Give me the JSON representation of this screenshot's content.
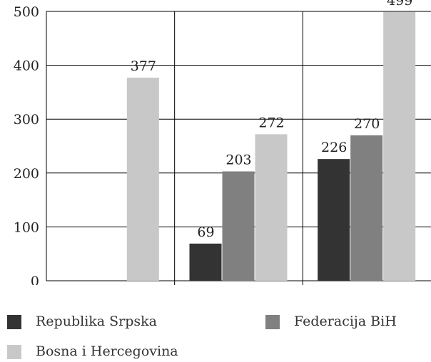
{
  "chart_data": {
    "type": "bar",
    "categories": [
      "",
      "",
      ""
    ],
    "series": [
      {
        "name": "Republika Srpska",
        "values": [
          null,
          69,
          226
        ],
        "color": "#333333"
      },
      {
        "name": "Federacija BiH",
        "values": [
          null,
          203,
          270
        ],
        "color": "#808080"
      },
      {
        "name": "Bosna i Hercegovina",
        "values": [
          377,
          272,
          499
        ],
        "color": "#c8c8c8"
      }
    ],
    "ylim": [
      0,
      500
    ],
    "yticks": [
      "0",
      "100",
      "200",
      "300",
      "400",
      "500"
    ],
    "grid": true,
    "legend_position": "bottom"
  }
}
